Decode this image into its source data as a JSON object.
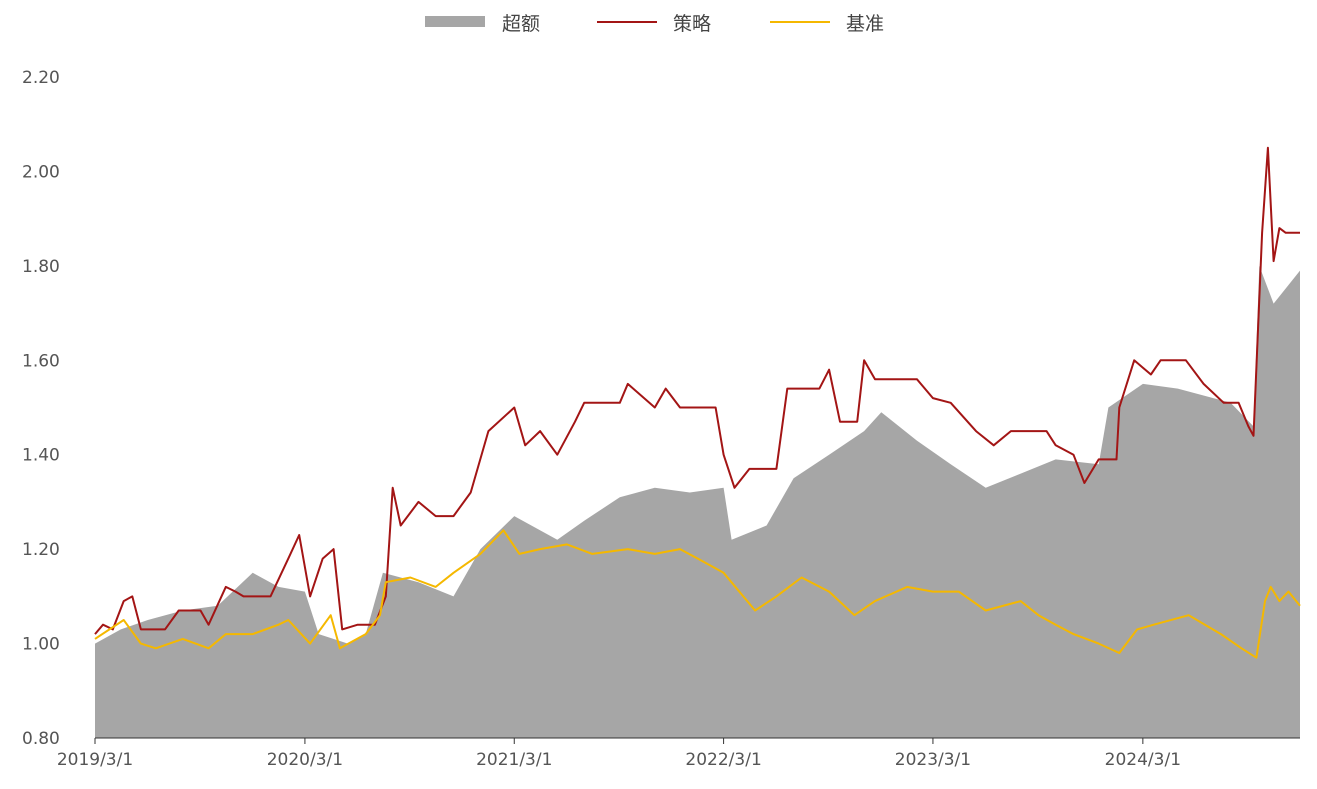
{
  "legend": [
    {
      "label": "超额",
      "style": "area",
      "color": "#a6a6a6"
    },
    {
      "label": "策略",
      "style": "line",
      "color": "#a31515"
    },
    {
      "label": "基准",
      "style": "line",
      "color": "#f5b800"
    }
  ],
  "chart_data": {
    "type": "line",
    "title": "",
    "xlabel": "",
    "ylabel": "",
    "ylim": [
      0.8,
      2.2
    ],
    "yticks": [
      "0.80",
      "1.00",
      "1.20",
      "1.40",
      "1.60",
      "1.80",
      "2.00",
      "2.20"
    ],
    "x_range": [
      "2019-03-01",
      "2024-11-30"
    ],
    "xticks": [
      {
        "label": "2019/3/1",
        "date": "2019-03-01"
      },
      {
        "label": "2020/3/1",
        "date": "2020-03-01"
      },
      {
        "label": "2021/3/1",
        "date": "2021-03-01"
      },
      {
        "label": "2022/3/1",
        "date": "2022-03-01"
      },
      {
        "label": "2023/3/1",
        "date": "2023-03-01"
      },
      {
        "label": "2024/3/1",
        "date": "2024-03-01"
      }
    ],
    "grid": false,
    "legend_position": "top-center",
    "series": [
      {
        "name": "超额",
        "type": "area",
        "color": "#a6a6a6",
        "points": [
          [
            "2019-03-01",
            1.0
          ],
          [
            "2019-04-15",
            1.03
          ],
          [
            "2019-06-01",
            1.05
          ],
          [
            "2019-08-01",
            1.07
          ],
          [
            "2019-10-01",
            1.08
          ],
          [
            "2019-12-01",
            1.15
          ],
          [
            "2020-01-15",
            1.12
          ],
          [
            "2020-03-01",
            1.11
          ],
          [
            "2020-03-25",
            1.02
          ],
          [
            "2020-05-15",
            1.0
          ],
          [
            "2020-06-15",
            1.02
          ],
          [
            "2020-07-15",
            1.15
          ],
          [
            "2020-09-15",
            1.13
          ],
          [
            "2020-11-15",
            1.1
          ],
          [
            "2021-01-01",
            1.2
          ],
          [
            "2021-03-01",
            1.27
          ],
          [
            "2021-05-15",
            1.22
          ],
          [
            "2021-07-01",
            1.26
          ],
          [
            "2021-09-01",
            1.31
          ],
          [
            "2021-11-01",
            1.33
          ],
          [
            "2022-01-01",
            1.32
          ],
          [
            "2022-03-01",
            1.33
          ],
          [
            "2022-03-15",
            1.22
          ],
          [
            "2022-05-15",
            1.25
          ],
          [
            "2022-07-01",
            1.35
          ],
          [
            "2022-09-01",
            1.4
          ],
          [
            "2022-11-01",
            1.45
          ],
          [
            "2022-12-01",
            1.49
          ],
          [
            "2023-02-01",
            1.43
          ],
          [
            "2023-04-01",
            1.38
          ],
          [
            "2023-06-01",
            1.33
          ],
          [
            "2023-08-01",
            1.36
          ],
          [
            "2023-10-01",
            1.39
          ],
          [
            "2023-12-15",
            1.38
          ],
          [
            "2024-01-01",
            1.5
          ],
          [
            "2024-03-01",
            1.55
          ],
          [
            "2024-05-01",
            1.54
          ],
          [
            "2024-08-01",
            1.51
          ],
          [
            "2024-09-10",
            1.46
          ],
          [
            "2024-09-20",
            1.8
          ],
          [
            "2024-10-15",
            1.72
          ],
          [
            "2024-11-30",
            1.79
          ]
        ]
      },
      {
        "name": "策略",
        "type": "line",
        "color": "#a31515",
        "points": [
          [
            "2019-03-01",
            1.02
          ],
          [
            "2019-03-15",
            1.04
          ],
          [
            "2019-04-01",
            1.03
          ],
          [
            "2019-04-20",
            1.09
          ],
          [
            "2019-05-05",
            1.1
          ],
          [
            "2019-05-20",
            1.03
          ],
          [
            "2019-07-01",
            1.03
          ],
          [
            "2019-07-25",
            1.07
          ],
          [
            "2019-09-01",
            1.07
          ],
          [
            "2019-09-15",
            1.04
          ],
          [
            "2019-10-15",
            1.12
          ],
          [
            "2019-11-01",
            1.11
          ],
          [
            "2019-11-15",
            1.1
          ],
          [
            "2020-01-01",
            1.1
          ],
          [
            "2020-02-01",
            1.18
          ],
          [
            "2020-02-20",
            1.23
          ],
          [
            "2020-03-10",
            1.1
          ],
          [
            "2020-04-01",
            1.18
          ],
          [
            "2020-04-20",
            1.2
          ],
          [
            "2020-05-05",
            1.03
          ],
          [
            "2020-06-01",
            1.04
          ],
          [
            "2020-07-01",
            1.04
          ],
          [
            "2020-07-20",
            1.1
          ],
          [
            "2020-08-01",
            1.33
          ],
          [
            "2020-08-15",
            1.25
          ],
          [
            "2020-09-15",
            1.3
          ],
          [
            "2020-10-15",
            1.27
          ],
          [
            "2020-11-15",
            1.27
          ],
          [
            "2020-12-15",
            1.32
          ],
          [
            "2021-01-15",
            1.45
          ],
          [
            "2021-03-01",
            1.5
          ],
          [
            "2021-03-20",
            1.42
          ],
          [
            "2021-04-15",
            1.45
          ],
          [
            "2021-05-15",
            1.4
          ],
          [
            "2021-06-15",
            1.47
          ],
          [
            "2021-07-01",
            1.51
          ],
          [
            "2021-09-01",
            1.51
          ],
          [
            "2021-09-15",
            1.55
          ],
          [
            "2021-11-01",
            1.5
          ],
          [
            "2021-11-20",
            1.54
          ],
          [
            "2021-12-15",
            1.5
          ],
          [
            "2022-02-15",
            1.5
          ],
          [
            "2022-03-01",
            1.4
          ],
          [
            "2022-03-20",
            1.33
          ],
          [
            "2022-04-15",
            1.37
          ],
          [
            "2022-06-01",
            1.37
          ],
          [
            "2022-06-20",
            1.54
          ],
          [
            "2022-08-15",
            1.54
          ],
          [
            "2022-09-01",
            1.58
          ],
          [
            "2022-09-20",
            1.47
          ],
          [
            "2022-10-20",
            1.47
          ],
          [
            "2022-11-01",
            1.6
          ],
          [
            "2022-11-20",
            1.56
          ],
          [
            "2023-02-01",
            1.56
          ],
          [
            "2023-03-01",
            1.52
          ],
          [
            "2023-04-01",
            1.51
          ],
          [
            "2023-05-15",
            1.45
          ],
          [
            "2023-06-15",
            1.42
          ],
          [
            "2023-07-15",
            1.45
          ],
          [
            "2023-09-15",
            1.45
          ],
          [
            "2023-10-01",
            1.42
          ],
          [
            "2023-11-01",
            1.4
          ],
          [
            "2023-11-20",
            1.34
          ],
          [
            "2023-12-15",
            1.39
          ],
          [
            "2024-01-15",
            1.39
          ],
          [
            "2024-01-20",
            1.5
          ],
          [
            "2024-02-15",
            1.6
          ],
          [
            "2024-03-15",
            1.57
          ],
          [
            "2024-04-01",
            1.6
          ],
          [
            "2024-05-15",
            1.6
          ],
          [
            "2024-06-15",
            1.55
          ],
          [
            "2024-07-20",
            1.51
          ],
          [
            "2024-08-15",
            1.51
          ],
          [
            "2024-09-01",
            1.46
          ],
          [
            "2024-09-10",
            1.44
          ],
          [
            "2024-09-25",
            1.87
          ],
          [
            "2024-10-05",
            2.05
          ],
          [
            "2024-10-15",
            1.81
          ],
          [
            "2024-10-25",
            1.88
          ],
          [
            "2024-11-05",
            1.87
          ],
          [
            "2024-11-30",
            1.87
          ]
        ]
      },
      {
        "name": "基准",
        "type": "line",
        "color": "#f5b800",
        "points": [
          [
            "2019-03-01",
            1.01
          ],
          [
            "2019-04-20",
            1.05
          ],
          [
            "2019-05-20",
            1.0
          ],
          [
            "2019-06-15",
            0.99
          ],
          [
            "2019-08-01",
            1.01
          ],
          [
            "2019-09-15",
            0.99
          ],
          [
            "2019-10-15",
            1.02
          ],
          [
            "2019-12-01",
            1.02
          ],
          [
            "2020-01-15",
            1.04
          ],
          [
            "2020-02-01",
            1.05
          ],
          [
            "2020-03-10",
            1.0
          ],
          [
            "2020-04-15",
            1.06
          ],
          [
            "2020-05-01",
            0.99
          ],
          [
            "2020-06-15",
            1.02
          ],
          [
            "2020-07-10",
            1.06
          ],
          [
            "2020-07-20",
            1.13
          ],
          [
            "2020-09-01",
            1.14
          ],
          [
            "2020-10-15",
            1.12
          ],
          [
            "2020-11-15",
            1.15
          ],
          [
            "2021-01-01",
            1.19
          ],
          [
            "2021-02-10",
            1.24
          ],
          [
            "2021-03-10",
            1.19
          ],
          [
            "2021-04-15",
            1.2
          ],
          [
            "2021-06-01",
            1.21
          ],
          [
            "2021-07-15",
            1.19
          ],
          [
            "2021-09-15",
            1.2
          ],
          [
            "2021-11-01",
            1.19
          ],
          [
            "2021-12-15",
            1.2
          ],
          [
            "2022-01-15",
            1.18
          ],
          [
            "2022-03-01",
            1.15
          ],
          [
            "2022-04-25",
            1.07
          ],
          [
            "2022-06-01",
            1.1
          ],
          [
            "2022-07-15",
            1.14
          ],
          [
            "2022-09-01",
            1.11
          ],
          [
            "2022-10-15",
            1.06
          ],
          [
            "2022-11-20",
            1.09
          ],
          [
            "2023-01-15",
            1.12
          ],
          [
            "2023-03-01",
            1.11
          ],
          [
            "2023-04-15",
            1.11
          ],
          [
            "2023-06-01",
            1.07
          ],
          [
            "2023-08-01",
            1.09
          ],
          [
            "2023-09-01",
            1.06
          ],
          [
            "2023-10-01",
            1.04
          ],
          [
            "2023-11-01",
            1.02
          ],
          [
            "2023-12-15",
            1.0
          ],
          [
            "2024-01-20",
            0.98
          ],
          [
            "2024-02-20",
            1.03
          ],
          [
            "2024-03-20",
            1.04
          ],
          [
            "2024-05-20",
            1.06
          ],
          [
            "2024-07-15",
            1.02
          ],
          [
            "2024-08-20",
            0.99
          ],
          [
            "2024-09-15",
            0.97
          ],
          [
            "2024-09-30",
            1.09
          ],
          [
            "2024-10-10",
            1.12
          ],
          [
            "2024-10-25",
            1.09
          ],
          [
            "2024-11-10",
            1.11
          ],
          [
            "2024-11-30",
            1.08
          ]
        ]
      }
    ]
  }
}
